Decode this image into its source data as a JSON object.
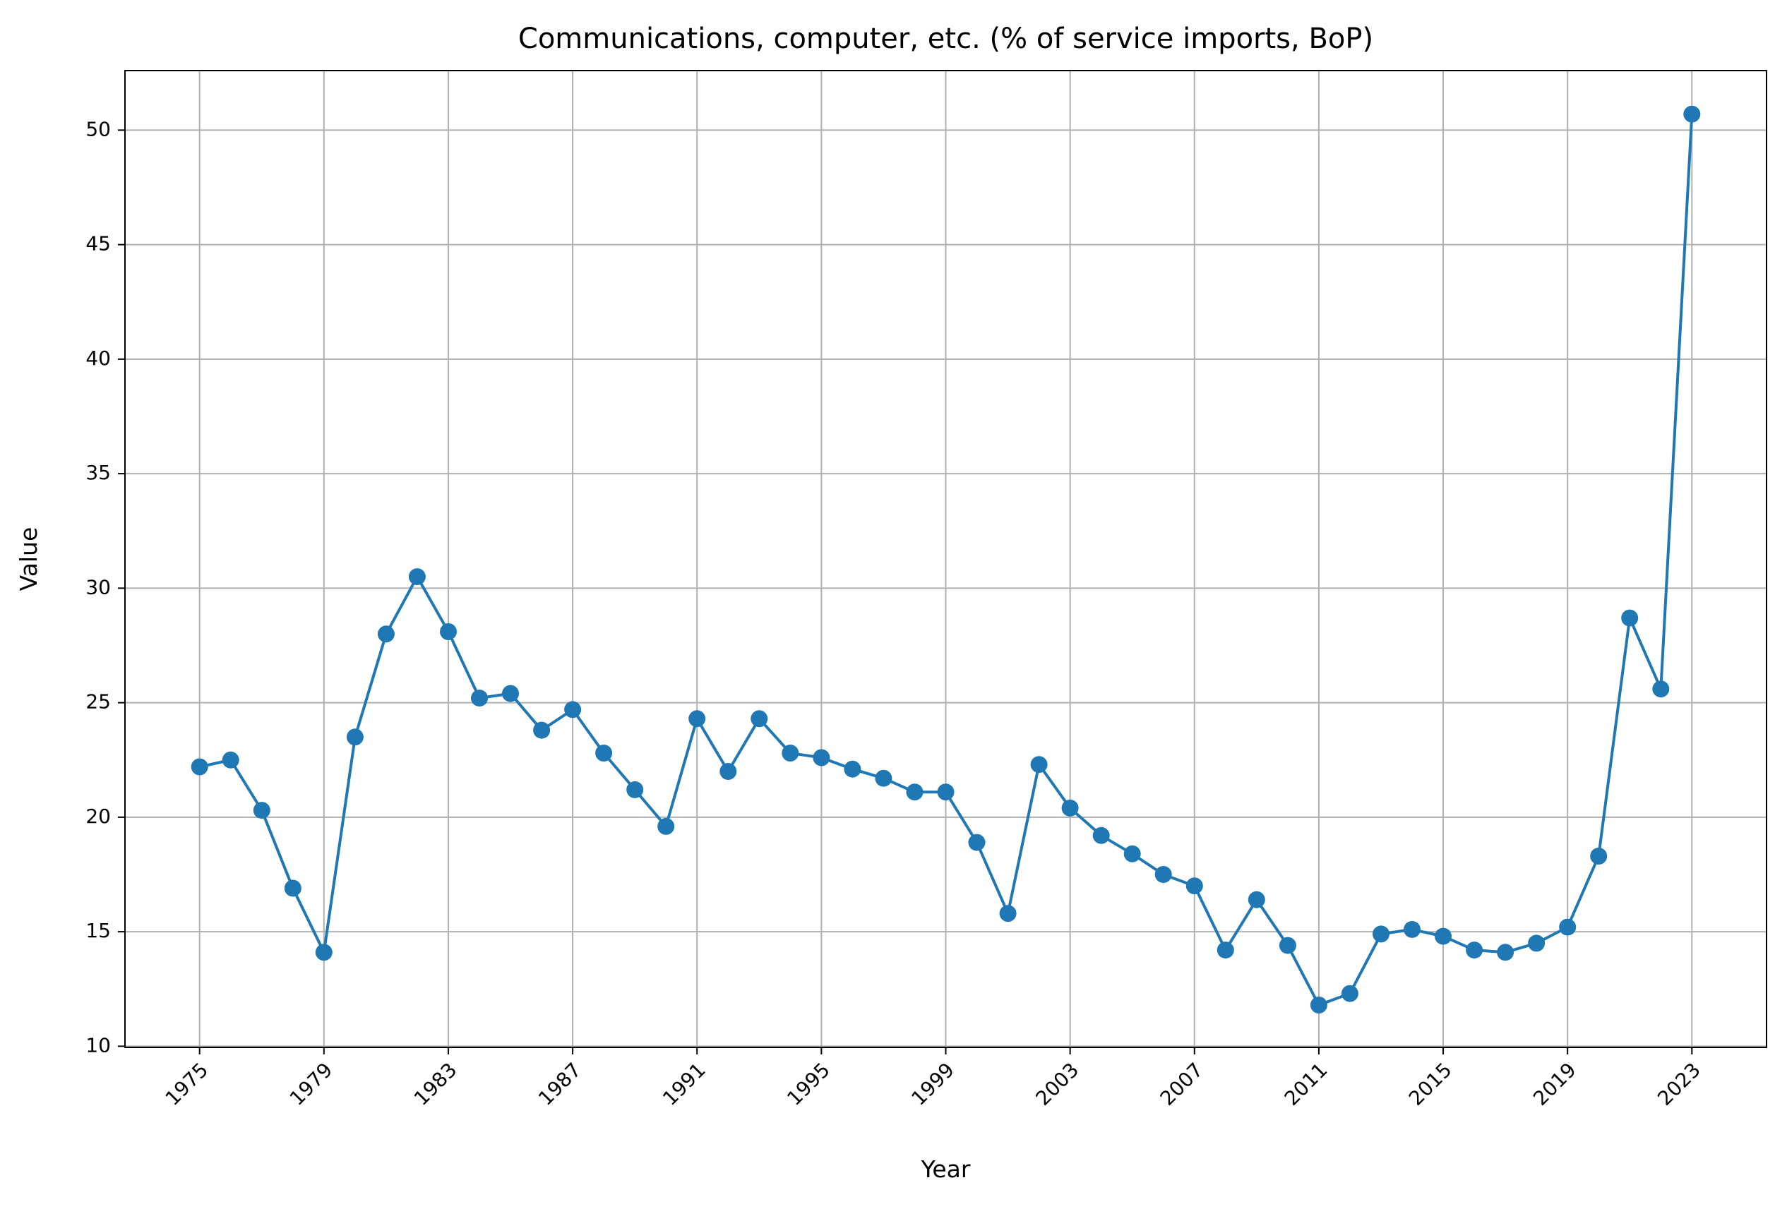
{
  "chart_data": {
    "type": "line",
    "title": "Communications, computer, etc. (% of service imports, BoP)",
    "xlabel": "Year",
    "ylabel": "Value",
    "xlim": [
      1972.6,
      2025.4
    ],
    "ylim": [
      9.95,
      52.6
    ],
    "grid": true,
    "line_color": "#1f77b4",
    "grid_color": "#b0b0b0",
    "x_ticks": [
      "1975",
      "1979",
      "1983",
      "1987",
      "1991",
      "1995",
      "1999",
      "2003",
      "2007",
      "2011",
      "2015",
      "2019",
      "2023"
    ],
    "y_ticks": [
      "10",
      "15",
      "20",
      "25",
      "30",
      "35",
      "40",
      "45",
      "50"
    ],
    "series": [
      {
        "x": [
          1975,
          1976,
          1977,
          1978,
          1979,
          1980,
          1981,
          1982,
          1983,
          1984,
          1985,
          1986,
          1987,
          1988,
          1989,
          1990,
          1991,
          1992,
          1993,
          1994,
          1995,
          1996,
          1997,
          1998,
          1999,
          2000,
          2001,
          2002,
          2003,
          2004,
          2005,
          2006,
          2007,
          2008,
          2009,
          2010,
          2011,
          2012,
          2013,
          2014,
          2015,
          2016,
          2017,
          2018,
          2019,
          2020,
          2021,
          2022,
          2023
        ],
        "values": [
          22.2,
          22.5,
          20.3,
          16.9,
          14.1,
          23.5,
          28.0,
          30.5,
          28.1,
          25.2,
          25.4,
          23.8,
          24.7,
          22.8,
          21.2,
          19.6,
          24.3,
          22.0,
          24.3,
          22.8,
          22.6,
          22.1,
          21.7,
          21.1,
          21.1,
          18.9,
          15.8,
          22.3,
          20.4,
          19.2,
          18.4,
          17.5,
          17.0,
          14.2,
          16.4,
          14.4,
          11.8,
          12.3,
          14.9,
          15.1,
          14.8,
          14.2,
          14.1,
          14.5,
          15.2,
          18.3,
          28.7,
          25.6,
          50.7
        ]
      }
    ]
  }
}
